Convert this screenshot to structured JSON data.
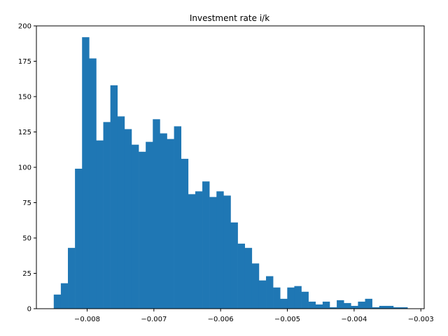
{
  "chart_data": {
    "type": "bar",
    "title": "Investment rate i/k",
    "xlabel": "",
    "ylabel": "",
    "bar_color": "#1f77b4",
    "bin_start": -0.0085,
    "bin_width": 0.000106,
    "values": [
      10,
      18,
      43,
      99,
      192,
      177,
      119,
      132,
      158,
      136,
      127,
      116,
      111,
      118,
      134,
      124,
      120,
      129,
      106,
      81,
      83,
      90,
      79,
      83,
      80,
      61,
      46,
      43,
      32,
      20,
      23,
      15,
      7,
      15,
      16,
      12,
      5,
      3,
      5,
      1,
      6,
      4,
      2,
      5,
      7,
      1,
      2,
      2,
      1,
      1
    ],
    "xlim": [
      -0.00876,
      -0.00295
    ],
    "ylim": [
      0,
      200
    ],
    "xticks": [
      -0.008,
      -0.007,
      -0.006,
      -0.005,
      -0.004,
      -0.003
    ],
    "xtick_labels": [
      "−0.008",
      "−0.007",
      "−0.006",
      "−0.005",
      "−0.004",
      "−0.003"
    ],
    "yticks": [
      0,
      25,
      50,
      75,
      100,
      125,
      150,
      175,
      200
    ],
    "ytick_labels": [
      "0",
      "25",
      "50",
      "75",
      "100",
      "125",
      "150",
      "175",
      "200"
    ],
    "grid": false,
    "legend": false
  }
}
